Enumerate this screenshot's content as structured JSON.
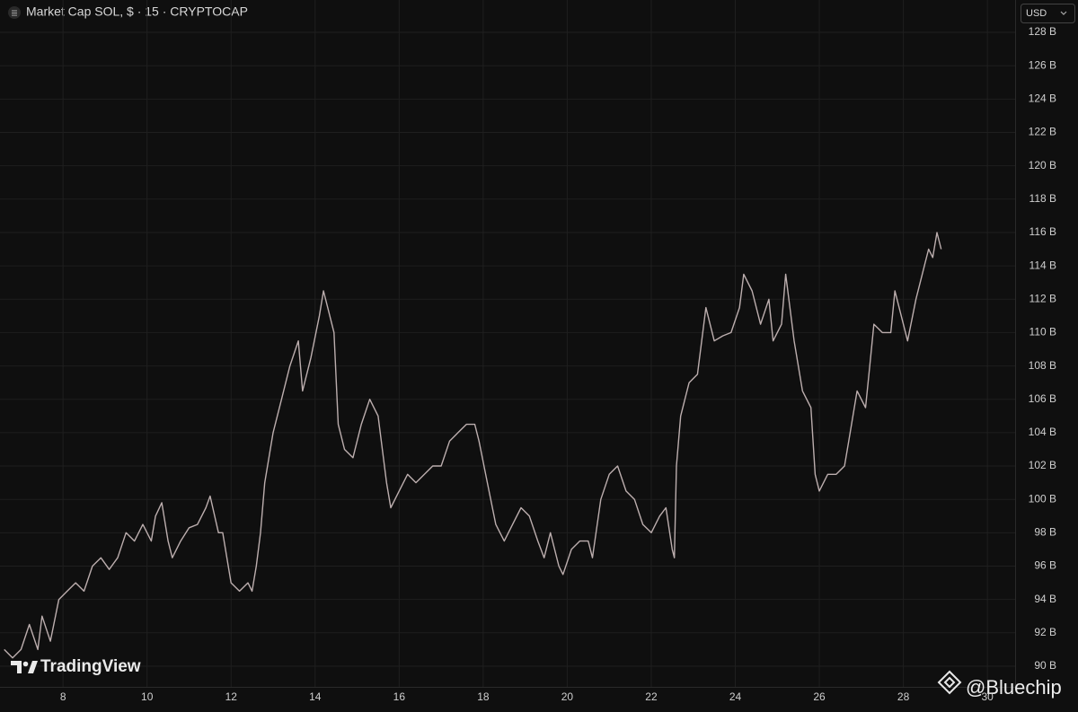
{
  "chart_data": {
    "type": "line",
    "title": "Market Cap SOL, $ · 15 · CRYPTOCAP",
    "currency": "USD",
    "logo_text": "TradingView",
    "watermark": "@Bluechip",
    "color": "#bcaeae",
    "grid": true,
    "xlim": [
      6.5,
      30.66
    ],
    "ylim": [
      88.76,
      129.94
    ],
    "xticks": [
      8,
      10,
      12,
      14,
      16,
      18,
      20,
      22,
      24,
      26,
      28,
      30
    ],
    "yticks": [
      {
        "value": 90,
        "label": "90 B"
      },
      {
        "value": 92,
        "label": "92 B"
      },
      {
        "value": 94,
        "label": "94 B"
      },
      {
        "value": 96,
        "label": "96 B"
      },
      {
        "value": 98,
        "label": "98 B"
      },
      {
        "value": 100,
        "label": "100 B"
      },
      {
        "value": 102,
        "label": "102 B"
      },
      {
        "value": 104,
        "label": "104 B"
      },
      {
        "value": 106,
        "label": "106 B"
      },
      {
        "value": 108,
        "label": "108 B"
      },
      {
        "value": 110,
        "label": "110 B"
      },
      {
        "value": 112,
        "label": "112 B"
      },
      {
        "value": 114,
        "label": "114 B"
      },
      {
        "value": 116,
        "label": "116 B"
      },
      {
        "value": 118,
        "label": "118 B"
      },
      {
        "value": 120,
        "label": "120 B"
      },
      {
        "value": 122,
        "label": "122 B"
      },
      {
        "value": 124,
        "label": "124 B"
      },
      {
        "value": 126,
        "label": "126 B"
      },
      {
        "value": 128,
        "label": "128 B"
      }
    ],
    "x": [
      6.6,
      6.8,
      7.0,
      7.2,
      7.4,
      7.5,
      7.7,
      7.9,
      8.1,
      8.3,
      8.5,
      8.7,
      8.9,
      9.1,
      9.3,
      9.5,
      9.7,
      9.9,
      10.1,
      10.2,
      10.35,
      10.5,
      10.6,
      10.8,
      11.0,
      11.2,
      11.4,
      11.5,
      11.7,
      11.8,
      12.0,
      12.2,
      12.4,
      12.5,
      12.6,
      12.7,
      12.8,
      13.0,
      13.2,
      13.4,
      13.6,
      13.7,
      13.9,
      14.1,
      14.2,
      14.3,
      14.45,
      14.55,
      14.7,
      14.9,
      15.1,
      15.3,
      15.5,
      15.7,
      15.8,
      16.0,
      16.2,
      16.4,
      16.6,
      16.8,
      17.0,
      17.2,
      17.4,
      17.6,
      17.8,
      17.9,
      18.1,
      18.3,
      18.5,
      18.7,
      18.9,
      19.1,
      19.3,
      19.45,
      19.6,
      19.8,
      19.9,
      20.1,
      20.3,
      20.5,
      20.6,
      20.8,
      21.0,
      21.2,
      21.4,
      21.6,
      21.8,
      22.0,
      22.2,
      22.35,
      22.5,
      22.55,
      22.6,
      22.7,
      22.9,
      23.1,
      23.3,
      23.5,
      23.7,
      23.9,
      24.1,
      24.2,
      24.4,
      24.6,
      24.8,
      24.9,
      25.1,
      25.2,
      25.4,
      25.6,
      25.8,
      25.9,
      26.0,
      26.2,
      26.4,
      26.6,
      26.7,
      26.9,
      27.1,
      27.2,
      27.3,
      27.5,
      27.7,
      27.8,
      27.9,
      28.1,
      28.3,
      28.5,
      28.6,
      28.7,
      28.8,
      28.9
    ],
    "values": [
      91,
      90.5,
      91,
      92.5,
      91,
      93,
      91.5,
      94,
      94.5,
      95,
      94.5,
      96,
      96.5,
      95.8,
      96.5,
      98,
      97.5,
      98.5,
      97.5,
      99,
      99.8,
      97.5,
      96.5,
      97.5,
      98.3,
      98.5,
      99.5,
      100.2,
      98,
      98,
      95,
      94.5,
      95,
      94.5,
      96,
      98,
      101,
      104,
      106,
      108,
      109.5,
      106.5,
      108.5,
      111,
      112.5,
      111.5,
      110,
      104.5,
      103,
      102.5,
      104.5,
      106,
      105,
      101,
      99.5,
      100.5,
      101.5,
      101,
      101.5,
      102,
      102,
      103.5,
      104,
      104.5,
      104.5,
      103.5,
      101,
      98.5,
      97.5,
      98.5,
      99.5,
      99,
      97.5,
      96.5,
      98,
      96,
      95.5,
      97,
      97.5,
      97.5,
      96.5,
      100,
      101.5,
      102,
      100.5,
      100,
      98.5,
      98,
      99,
      99.5,
      97,
      96.5,
      102,
      105,
      107,
      107.5,
      111.5,
      109.5,
      109.8,
      110,
      111.5,
      113.5,
      112.5,
      110.5,
      112,
      109.5,
      110.5,
      113.5,
      109.5,
      106.5,
      105.5,
      101.5,
      100.5,
      101.5,
      101.5,
      102,
      103.5,
      106.5,
      105.5,
      108,
      110.5,
      110,
      110,
      112.5,
      111.5,
      109.5,
      112,
      114,
      115,
      114.5,
      116,
      115
    ]
  }
}
